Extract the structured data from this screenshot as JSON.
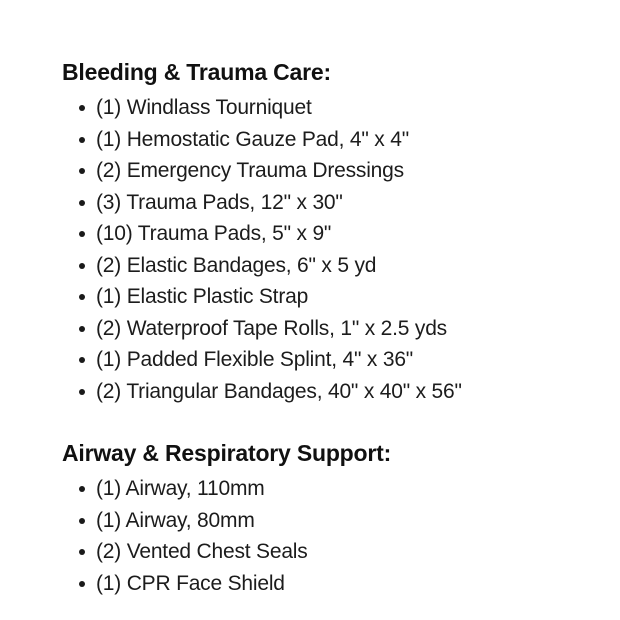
{
  "page": {
    "background_color": "#ffffff",
    "text_color": "#1a1a1a"
  },
  "sections": [
    {
      "title": "Bleeding & Trauma Care:",
      "items": [
        "(1) Windlass Tourniquet",
        "(1) Hemostatic Gauze Pad, 4\" x 4\"",
        "(2) Emergency Trauma Dressings",
        "(3) Trauma Pads, 12\" x 30\"",
        "(10) Trauma Pads, 5\" x 9\"",
        "(2) Elastic Bandages, 6\" x 5 yd",
        "(1) Elastic Plastic Strap",
        "(2) Waterproof Tape Rolls, 1\" x 2.5 yds",
        "(1) Padded Flexible Splint, 4\" x 36\"",
        "(2) Triangular Bandages, 40\" x 40\" x 56\""
      ]
    },
    {
      "title": "Airway & Respiratory Support:",
      "items": [
        "(1) Airway, 110mm",
        "(1) Airway, 80mm",
        "(2) Vented Chest Seals",
        "(1) CPR Face Shield"
      ]
    }
  ]
}
